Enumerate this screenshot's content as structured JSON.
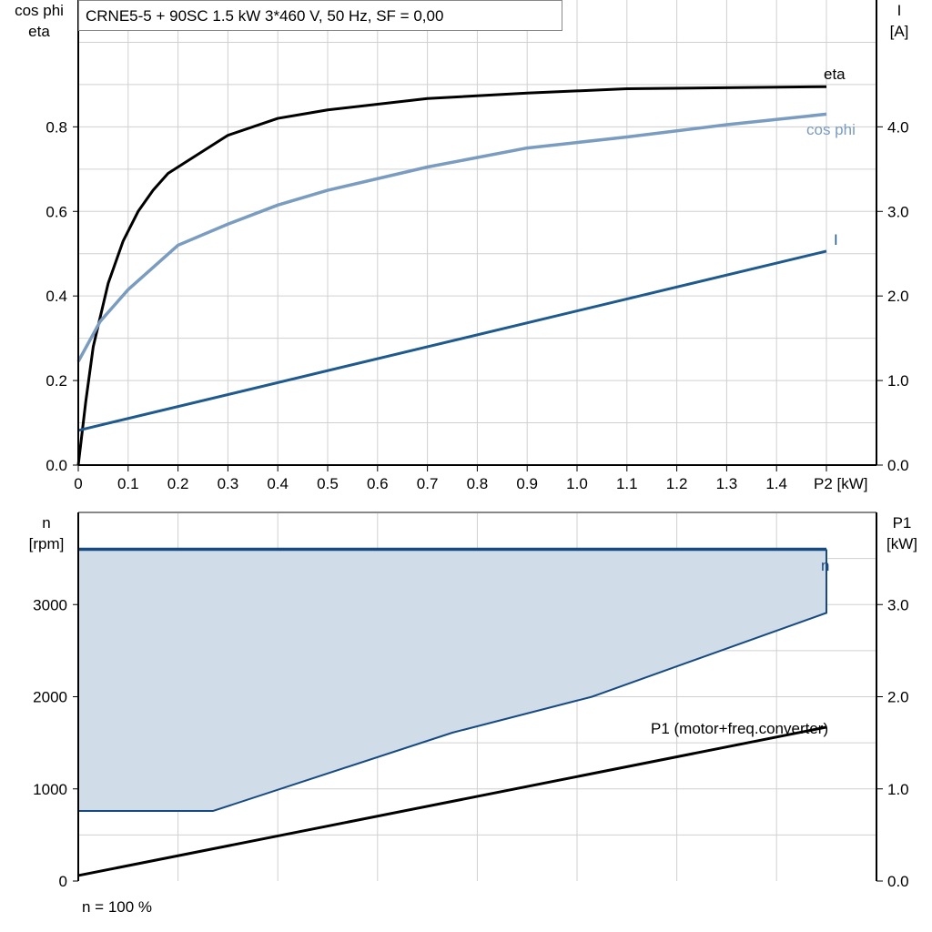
{
  "title": "CRNE5-5 + 90SC   1.5 kW   3*460 V, 50 Hz, SF = 0,00",
  "footer_note": "n = 100 %",
  "colors": {
    "eta": "#000000",
    "cos_phi": "#7a9cc0",
    "current": "#1f5a8e",
    "speed": "#174a80",
    "speed_fill": "#d0dce8",
    "p1": "#000000",
    "grid": "#d0d0d0"
  },
  "chart_data": [
    {
      "type": "line",
      "xlabel": "P2 [kW]",
      "ylabel_left": [
        "cos phi",
        "eta"
      ],
      "ylabel_right": [
        "I",
        "[A]"
      ],
      "xlim": [
        0,
        1.6
      ],
      "ylim_left": [
        0,
        1.1
      ],
      "ylim_right": [
        0,
        5.5
      ],
      "x_ticks": [
        "0",
        "0.1",
        "0.2",
        "0.3",
        "0.4",
        "0.5",
        "0.6",
        "0.7",
        "0.8",
        "0.9",
        "1.0",
        "1.1",
        "1.2",
        "1.3",
        "1.4"
      ],
      "y_ticks_left": [
        "0.0",
        "0.2",
        "0.4",
        "0.6",
        "0.8"
      ],
      "y_ticks_right": [
        "0.0",
        "1.0",
        "2.0",
        "3.0",
        "4.0"
      ],
      "grid": true,
      "series": [
        {
          "name": "eta",
          "axis": "left",
          "x": [
            0,
            0.015,
            0.03,
            0.06,
            0.09,
            0.12,
            0.15,
            0.18,
            0.22,
            0.3,
            0.4,
            0.5,
            0.7,
            0.9,
            1.1,
            1.5
          ],
          "y": [
            0,
            0.15,
            0.28,
            0.43,
            0.53,
            0.6,
            0.65,
            0.69,
            0.72,
            0.78,
            0.82,
            0.84,
            0.867,
            0.88,
            0.89,
            0.895
          ]
        },
        {
          "name": "cos phi",
          "axis": "left",
          "x": [
            0,
            0.044,
            0.1,
            0.2,
            0.3,
            0.4,
            0.5,
            0.7,
            0.9,
            1.1,
            1.3,
            1.5
          ],
          "y": [
            0.245,
            0.34,
            0.415,
            0.52,
            0.57,
            0.615,
            0.65,
            0.705,
            0.75,
            0.776,
            0.805,
            0.83
          ]
        },
        {
          "name": "I",
          "axis": "right",
          "x": [
            0,
            1.5
          ],
          "y": [
            0.41,
            2.53
          ]
        }
      ]
    },
    {
      "type": "area",
      "ylabel_left": [
        "n",
        "[rpm]"
      ],
      "ylabel_right": [
        "P1",
        "[kW]"
      ],
      "xlim": [
        0,
        1.6
      ],
      "ylim_left": [
        0,
        4000
      ],
      "ylim_right": [
        0,
        4.0
      ],
      "y_ticks_left": [
        "0",
        "1000",
        "2000",
        "3000"
      ],
      "y_ticks_right": [
        "0.0",
        "1.0",
        "2.0",
        "3.0"
      ],
      "grid": true,
      "series": [
        {
          "name": "n",
          "axis": "left",
          "upper": {
            "x": [
              0,
              1.5
            ],
            "y": [
              3600,
              3600
            ]
          },
          "lower": {
            "x": [
              0,
              0.27,
              0.75,
              1.03,
              1.5
            ],
            "y": [
              760,
              760,
              1610,
              2000,
              2910
            ]
          }
        },
        {
          "name": "P1 (motor+freq.converter)",
          "axis": "right",
          "x": [
            0,
            1.5
          ],
          "y": [
            0.06,
            1.67
          ]
        }
      ]
    }
  ]
}
